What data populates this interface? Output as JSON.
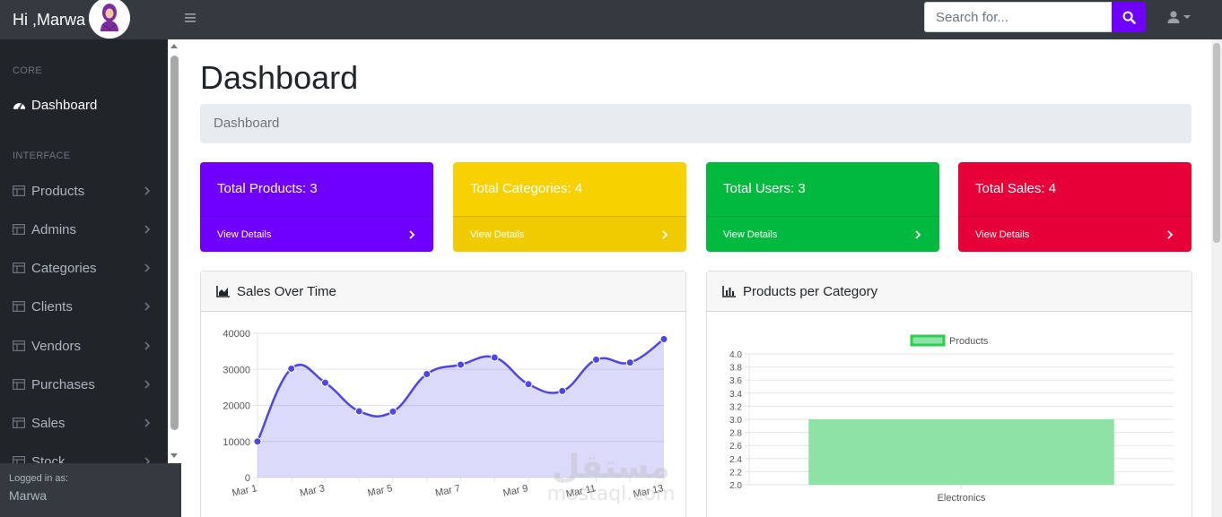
{
  "topbar": {
    "greeting": "Hi ,Marwa",
    "search_placeholder": "Search for..."
  },
  "sidebar": {
    "core_heading": "CORE",
    "interface_heading": "INTERFACE",
    "dashboard_label": "Dashboard",
    "items": [
      {
        "label": "Products"
      },
      {
        "label": "Admins"
      },
      {
        "label": "Categories"
      },
      {
        "label": "Clients"
      },
      {
        "label": "Vendors"
      },
      {
        "label": "Purchases"
      },
      {
        "label": "Sales"
      },
      {
        "label": "Stock"
      }
    ],
    "footer": {
      "logged_in_as": "Logged in as:",
      "username": "Marwa"
    }
  },
  "main": {
    "title": "Dashboard",
    "breadcrumb": "Dashboard",
    "cards": [
      {
        "title": "Total Products: 3",
        "link": "View Details",
        "color": "#6f00ff"
      },
      {
        "title": "Total Categories: 4",
        "link": "View Details",
        "color": "#f8d200"
      },
      {
        "title": "Total Users: 3",
        "link": "View Details",
        "color": "#00b93f"
      },
      {
        "title": "Total Sales: 4",
        "link": "View Details",
        "color": "#e60037"
      }
    ],
    "sales_panel_title": "Sales Over Time",
    "category_panel_title": "Products per Category"
  },
  "watermark": {
    "arabic": "مستقل",
    "latin": "mostaql.com"
  },
  "chart_data": [
    {
      "type": "area",
      "x": [
        "Mar 1",
        "Mar 2",
        "Mar 3",
        "Mar 4",
        "Mar 5",
        "Mar 6",
        "Mar 7",
        "Mar 8",
        "Mar 9",
        "Mar 10",
        "Mar 11",
        "Mar 12",
        "Mar 13"
      ],
      "x_tick_labels": [
        "Mar 1",
        "Mar 3",
        "Mar 5",
        "Mar 7",
        "Mar 9",
        "Mar 11",
        "Mar 13"
      ],
      "values": [
        10000,
        30200,
        26300,
        18400,
        18300,
        28700,
        31300,
        33300,
        25900,
        24000,
        32700,
        31900,
        38400
      ],
      "ylim": [
        0,
        40000
      ],
      "y_ticks": [
        0,
        10000,
        20000,
        30000,
        40000
      ],
      "line_color": "#5046e5",
      "fill_color": "rgba(80,70,229,0.2)",
      "grid": true
    },
    {
      "type": "bar",
      "categories": [
        "Electronics"
      ],
      "series": [
        {
          "name": "Products",
          "values": [
            3
          ]
        }
      ],
      "ylim": [
        2.0,
        4.0
      ],
      "y_ticks": [
        2.0,
        2.2,
        2.4,
        2.6,
        2.8,
        3.0,
        3.2,
        3.4,
        3.6,
        3.8,
        4.0
      ],
      "legend": "top",
      "bar_color": "#8de3a6",
      "bar_border": "#2ecc55",
      "grid": true
    }
  ]
}
